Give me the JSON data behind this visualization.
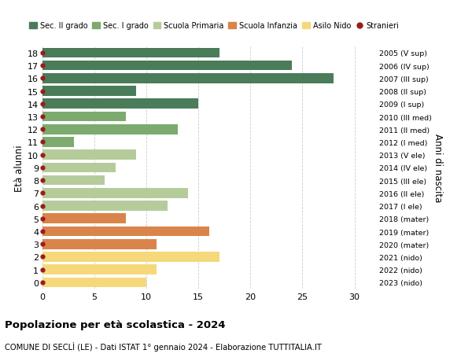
{
  "ages": [
    18,
    17,
    16,
    15,
    14,
    13,
    12,
    11,
    10,
    9,
    8,
    7,
    6,
    5,
    4,
    3,
    2,
    1,
    0
  ],
  "values": [
    17,
    24,
    28,
    9,
    15,
    8,
    13,
    3,
    9,
    7,
    6,
    14,
    12,
    8,
    16,
    11,
    17,
    11,
    10
  ],
  "right_labels": [
    "2005 (V sup)",
    "2006 (IV sup)",
    "2007 (III sup)",
    "2008 (II sup)",
    "2009 (I sup)",
    "2010 (III med)",
    "2011 (II med)",
    "2012 (I med)",
    "2013 (V ele)",
    "2014 (IV ele)",
    "2015 (III ele)",
    "2016 (II ele)",
    "2017 (I ele)",
    "2018 (mater)",
    "2019 (mater)",
    "2020 (mater)",
    "2021 (nido)",
    "2022 (nido)",
    "2023 (nido)"
  ],
  "bar_colors": [
    "#4a7c59",
    "#4a7c59",
    "#4a7c59",
    "#4a7c59",
    "#4a7c59",
    "#7daa6e",
    "#7daa6e",
    "#7daa6e",
    "#b5cc9a",
    "#b5cc9a",
    "#b5cc9a",
    "#b5cc9a",
    "#b5cc9a",
    "#d9844a",
    "#d9844a",
    "#d9844a",
    "#f5d87a",
    "#f5d87a",
    "#f5d87a"
  ],
  "dot_color": "#9b1c1c",
  "legend_labels": [
    "Sec. II grado",
    "Sec. I grado",
    "Scuola Primaria",
    "Scuola Infanzia",
    "Asilo Nido",
    "Stranieri"
  ],
  "legend_colors": [
    "#4a7c59",
    "#7daa6e",
    "#b5cc9a",
    "#d9844a",
    "#f5d87a",
    "#9b1c1c"
  ],
  "ylabel": "Età alunni",
  "right_ylabel": "Anni di nascita",
  "title": "Popolazione per età scolastica - 2024",
  "subtitle": "COMUNE DI SECLÌ (LE) - Dati ISTAT 1° gennaio 2024 - Elaborazione TUTTITALIA.IT",
  "xlim": [
    0,
    32
  ],
  "xticks": [
    0,
    5,
    10,
    15,
    20,
    25,
    30
  ],
  "bg_color": "#ffffff",
  "grid_color": "#cccccc",
  "bar_height": 0.78
}
